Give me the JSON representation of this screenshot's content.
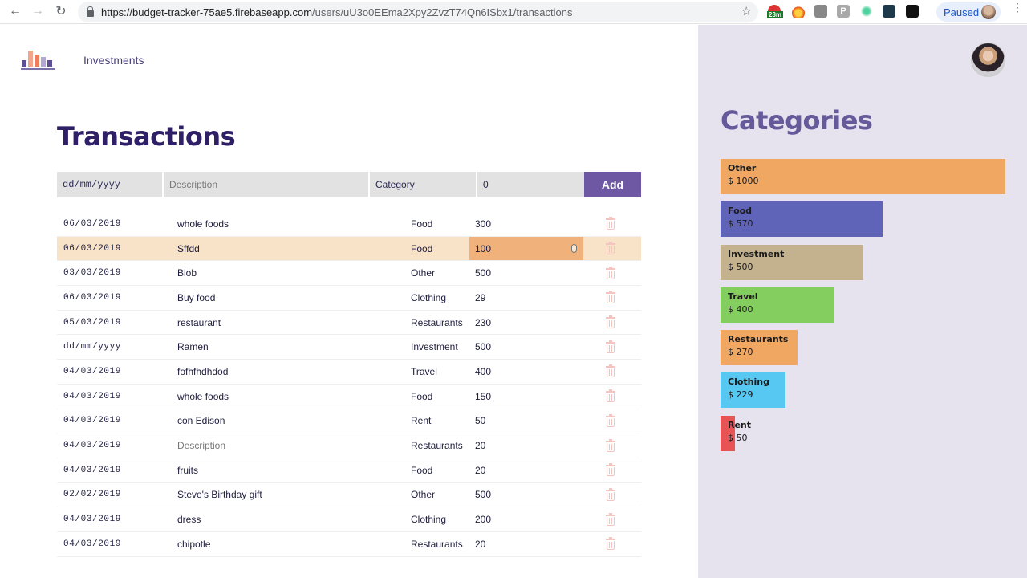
{
  "browser": {
    "url_host": "https://budget-tracker-75ae5.firebaseapp.com",
    "url_path": "/users/uU3o0EEma2Xpy2ZvzT74Qn6ISbx1/transactions",
    "extension_badge": "23m",
    "profile_label": "Paused"
  },
  "header": {
    "nav_link": "Investments"
  },
  "transactions": {
    "title": "Transactions",
    "form": {
      "date_placeholder": "dd/mm/yyyy",
      "description_placeholder": "Description",
      "category_label": "Category",
      "amount_value": "0",
      "add_label": "Add"
    },
    "rows": [
      {
        "date": "06/03/2019",
        "description": "whole foods",
        "category": "Food",
        "amount": "300"
      },
      {
        "date": "06/03/2019",
        "description": "Sffdd",
        "category": "Food",
        "amount": "100",
        "editing": true
      },
      {
        "date": "03/03/2019",
        "description": "Blob",
        "category": "Other",
        "amount": "500"
      },
      {
        "date": "06/03/2019",
        "description": "Buy food",
        "category": "Clothing",
        "amount": "29"
      },
      {
        "date": "05/03/2019",
        "description": "restaurant",
        "category": "Restaurants",
        "amount": "230"
      },
      {
        "date": "dd/mm/yyyy",
        "description": "Ramen",
        "category": "Investment",
        "amount": "500"
      },
      {
        "date": "04/03/2019",
        "description": "fofhfhdhdod",
        "category": "Travel",
        "amount": "400"
      },
      {
        "date": "04/03/2019",
        "description": "whole foods",
        "category": "Food",
        "amount": "150"
      },
      {
        "date": "04/03/2019",
        "description": "con Edison",
        "category": "Rent",
        "amount": "50"
      },
      {
        "date": "04/03/2019",
        "description": "Description",
        "category": "Restaurants",
        "amount": "20",
        "placeholder": true
      },
      {
        "date": "04/03/2019",
        "description": "fruits",
        "category": "Food",
        "amount": "20"
      },
      {
        "date": "02/02/2019",
        "description": "Steve's Birthday gift",
        "category": "Other",
        "amount": "500"
      },
      {
        "date": "04/03/2019",
        "description": "dress",
        "category": "Clothing",
        "amount": "200"
      },
      {
        "date": "04/03/2019",
        "description": "chipotle",
        "category": "Restaurants",
        "amount": "20"
      }
    ]
  },
  "categories": {
    "title": "Categories",
    "items": [
      {
        "name": "Other",
        "amount": "$ 1000",
        "value": 1000,
        "color": "#f0a762"
      },
      {
        "name": "Food",
        "amount": "$ 570",
        "value": 570,
        "color": "#6064b8"
      },
      {
        "name": "Investment",
        "amount": "$ 500",
        "value": 500,
        "color": "#c4b28e"
      },
      {
        "name": "Travel",
        "amount": "$ 400",
        "value": 400,
        "color": "#84ce60"
      },
      {
        "name": "Restaurants",
        "amount": "$ 270",
        "value": 270,
        "color": "#f0a762"
      },
      {
        "name": "Clothing",
        "amount": "$ 229",
        "value": 229,
        "color": "#57c8f2"
      },
      {
        "name": "Rent",
        "amount": "$ 50",
        "value": 50,
        "color": "#e85456"
      }
    ]
  },
  "colors": {
    "accent": "#6e58a3",
    "title": "#2e1f66",
    "sidebar_bg": "#e6e2ee",
    "highlight_row": "#f8e2c8"
  }
}
